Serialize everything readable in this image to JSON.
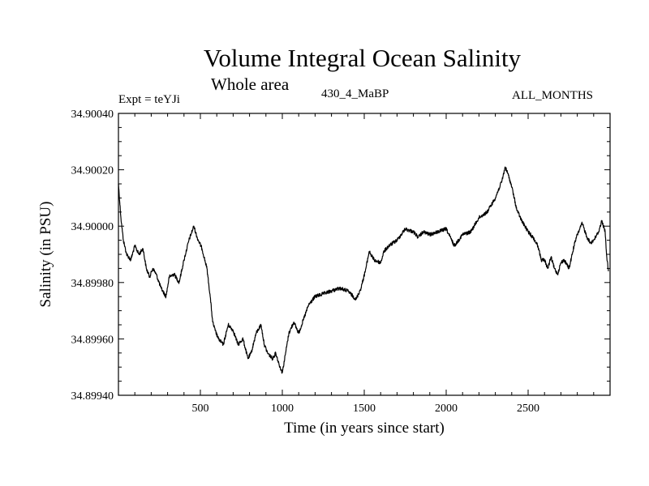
{
  "header": {
    "title": "Volume Integral Ocean Salinity",
    "subtitle": "Whole area",
    "expt_label": "Expt = teYJi",
    "code_label": "430_4_MaBP",
    "months_label": "ALL_MONTHS"
  },
  "chart_data": {
    "type": "line",
    "title": "Volume Integral Ocean Salinity",
    "subtitle": "Whole area",
    "xlabel": "Time (in years since start)",
    "ylabel": "Salinity (in PSU)",
    "xlim": [
      0,
      3000
    ],
    "ylim": [
      34.8994,
      34.9004
    ],
    "x_ticks": [
      500,
      1000,
      1500,
      2000,
      2500
    ],
    "x_tick_labels": [
      "500",
      "1000",
      "1500",
      "2000",
      "2500"
    ],
    "y_ticks": [
      34.8994,
      34.8996,
      34.8998,
      34.9,
      34.9002,
      34.9004
    ],
    "y_tick_labels": [
      "34.89940",
      "34.89960",
      "34.89980",
      "34.90000",
      "34.90020",
      "34.90040"
    ],
    "grid": false,
    "series": [
      {
        "name": "Volume Integral Ocean Salinity",
        "color": "#000000",
        "x": [
          0,
          15,
          30,
          50,
          75,
          100,
          125,
          150,
          170,
          190,
          210,
          230,
          260,
          290,
          310,
          340,
          370,
          400,
          430,
          460,
          480,
          510,
          540,
          560,
          575,
          590,
          610,
          640,
          670,
          700,
          730,
          760,
          790,
          810,
          840,
          870,
          890,
          910,
          940,
          960,
          980,
          1000,
          1020,
          1040,
          1070,
          1100,
          1130,
          1160,
          1200,
          1250,
          1300,
          1350,
          1400,
          1450,
          1480,
          1510,
          1530,
          1560,
          1600,
          1620,
          1650,
          1700,
          1750,
          1800,
          1830,
          1860,
          1900,
          1950,
          2000,
          2050,
          2100,
          2150,
          2200,
          2250,
          2300,
          2340,
          2360,
          2380,
          2400,
          2430,
          2460,
          2500,
          2530,
          2560,
          2580,
          2600,
          2620,
          2640,
          2660,
          2680,
          2700,
          2720,
          2750,
          2780,
          2800,
          2830,
          2860,
          2880,
          2900,
          2930,
          2950,
          2970,
          2980,
          2990
        ],
        "values": [
          34.90015,
          34.90003,
          34.89995,
          34.8999,
          34.89988,
          34.89993,
          34.8999,
          34.89992,
          34.89985,
          34.89982,
          34.89985,
          34.89983,
          34.89978,
          34.89975,
          34.89982,
          34.89983,
          34.8998,
          34.89988,
          34.89995,
          34.9,
          34.89996,
          34.89992,
          34.89985,
          34.89975,
          34.89966,
          34.89963,
          34.8996,
          34.89958,
          34.89965,
          34.89963,
          34.89958,
          34.8996,
          34.89953,
          34.89955,
          34.89962,
          34.89965,
          34.89958,
          34.89955,
          34.89953,
          34.89955,
          34.89951,
          34.89948,
          34.89955,
          34.89962,
          34.89966,
          34.89962,
          34.89967,
          34.89972,
          34.89975,
          34.89976,
          34.89977,
          34.89978,
          34.89977,
          34.89974,
          34.89978,
          34.89985,
          34.89991,
          34.89988,
          34.89987,
          34.89991,
          34.89993,
          34.89995,
          34.89999,
          34.89998,
          34.89996,
          34.89998,
          34.89997,
          34.89998,
          34.89999,
          34.89993,
          34.89997,
          34.89998,
          34.90003,
          34.90005,
          34.9001,
          34.90016,
          34.90021,
          34.90018,
          34.90014,
          34.90006,
          34.90002,
          34.89998,
          34.89996,
          34.89993,
          34.89988,
          34.89988,
          34.89985,
          34.89989,
          34.89985,
          34.89983,
          34.89987,
          34.89988,
          34.89985,
          34.89993,
          34.89997,
          34.90001,
          34.89996,
          34.89994,
          34.89995,
          34.89998,
          34.90002,
          34.89998,
          34.89989,
          34.89984
        ]
      }
    ]
  }
}
